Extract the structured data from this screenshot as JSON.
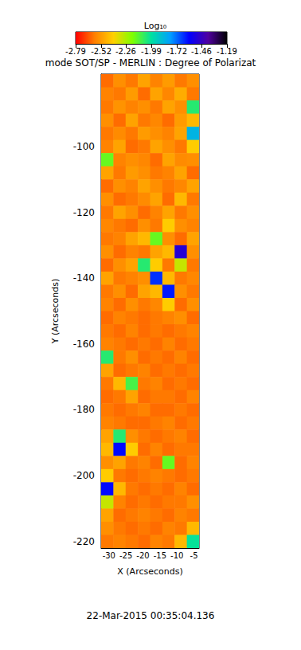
{
  "chart_data": {
    "type": "heatmap",
    "title": "mode SOT/SP - MERLIN : Degree of Polarizat",
    "x_label": "X (Arcseconds)",
    "y_label": "Y (Arcseconds)",
    "annotations": [
      "22-Mar-2015 00:35:04.136"
    ],
    "xlim": [
      -32.3,
      -3.5
    ],
    "ylim": [
      -222,
      -78
    ],
    "xticks": [
      -30,
      -25,
      -20,
      -15,
      -10,
      -5
    ],
    "yticks": [
      -220,
      -200,
      -180,
      -160,
      -140,
      -120,
      -100
    ],
    "colorbar": {
      "label": "Log₁₀",
      "range": [
        -2.79,
        -1.19
      ],
      "ticks": [
        -2.79,
        -2.52,
        -2.26,
        -1.99,
        -1.72,
        -1.46,
        -1.19
      ]
    },
    "x": [
      -30.5,
      -26.9,
      -23.3,
      -19.7,
      -16.1,
      -12.5,
      -8.9,
      -5.3
    ],
    "y": [
      -80,
      -84,
      -88,
      -92,
      -96,
      -100,
      -104,
      -108,
      -112,
      -116,
      -120,
      -124,
      -128,
      -132,
      -136,
      -140,
      -144,
      -148,
      -152,
      -156,
      -160,
      -164,
      -168,
      -172,
      -176,
      -180,
      -184,
      -188,
      -192,
      -196,
      -200,
      -204,
      -208,
      -212,
      -216,
      -220
    ],
    "values": [
      [
        -2.62,
        -2.55,
        -2.6,
        -2.5,
        -2.58,
        -2.52,
        -2.6,
        -2.55
      ],
      [
        -2.58,
        -2.6,
        -2.52,
        -2.62,
        -2.5,
        -2.57,
        -2.48,
        -2.6
      ],
      [
        -2.6,
        -2.54,
        -2.58,
        -2.55,
        -2.6,
        -2.5,
        -2.55,
        -2.05
      ],
      [
        -2.55,
        -2.62,
        -2.5,
        -2.6,
        -2.57,
        -2.62,
        -2.52,
        -2.45
      ],
      [
        -2.6,
        -2.56,
        -2.6,
        -2.52,
        -2.55,
        -2.58,
        -2.5,
        -1.85
      ],
      [
        -2.58,
        -2.5,
        -2.62,
        -2.6,
        -2.5,
        -2.55,
        -2.6,
        -2.4
      ],
      [
        -2.15,
        -2.58,
        -2.55,
        -2.57,
        -2.62,
        -2.5,
        -2.56,
        -2.55
      ],
      [
        -2.5,
        -2.6,
        -2.52,
        -2.55,
        -2.6,
        -2.58,
        -2.5,
        -2.62
      ],
      [
        -2.62,
        -2.55,
        -2.58,
        -2.5,
        -2.55,
        -2.6,
        -2.57,
        -2.5
      ],
      [
        -2.55,
        -2.62,
        -2.6,
        -2.56,
        -2.5,
        -2.62,
        -2.45,
        -2.6
      ],
      [
        -2.6,
        -2.5,
        -2.55,
        -2.62,
        -2.58,
        -2.5,
        -2.6,
        -2.55
      ],
      [
        -2.57,
        -2.6,
        -2.62,
        -2.55,
        -2.6,
        -2.4,
        -2.55,
        -2.58
      ],
      [
        -2.6,
        -2.58,
        -2.5,
        -2.45,
        -2.15,
        -2.55,
        -2.62,
        -2.5
      ],
      [
        -2.55,
        -2.62,
        -2.58,
        -2.6,
        -2.5,
        -2.45,
        -1.5,
        -2.55
      ],
      [
        -2.62,
        -2.55,
        -2.5,
        -2.05,
        -2.4,
        -2.6,
        -2.3,
        -2.6
      ],
      [
        -2.5,
        -2.6,
        -2.58,
        -2.55,
        -1.65,
        -2.45,
        -2.6,
        -2.57
      ],
      [
        -2.6,
        -2.55,
        -2.62,
        -2.5,
        -2.45,
        -1.62,
        -2.55,
        -2.6
      ],
      [
        -2.58,
        -2.62,
        -2.55,
        -2.6,
        -2.57,
        -2.4,
        -2.62,
        -2.55
      ],
      [
        -2.62,
        -2.58,
        -2.6,
        -2.62,
        -2.6,
        -2.58,
        -2.55,
        -2.62
      ],
      [
        -2.6,
        -2.62,
        -2.58,
        -2.62,
        -2.6,
        -2.62,
        -2.6,
        -2.58
      ],
      [
        -2.58,
        -2.6,
        -2.62,
        -2.6,
        -2.62,
        -2.58,
        -2.62,
        -2.6
      ],
      [
        -2.05,
        -2.6,
        -2.55,
        -2.62,
        -2.6,
        -2.62,
        -2.58,
        -2.62
      ],
      [
        -2.5,
        -2.62,
        -2.6,
        -2.58,
        -2.62,
        -2.6,
        -2.62,
        -2.6
      ],
      [
        -2.6,
        -2.45,
        -2.1,
        -2.6,
        -2.58,
        -2.62,
        -2.6,
        -2.62
      ],
      [
        -2.62,
        -2.6,
        -2.5,
        -2.62,
        -2.6,
        -2.6,
        -2.62,
        -2.58
      ],
      [
        -2.6,
        -2.62,
        -2.6,
        -2.58,
        -2.62,
        -2.62,
        -2.6,
        -2.62
      ],
      [
        -2.58,
        -2.6,
        -2.62,
        -2.62,
        -2.6,
        -2.58,
        -2.62,
        -2.6
      ],
      [
        -2.5,
        -2.05,
        -2.55,
        -2.6,
        -2.62,
        -2.6,
        -2.58,
        -2.62
      ],
      [
        -2.45,
        -1.6,
        -2.4,
        -2.62,
        -2.58,
        -2.62,
        -2.6,
        -2.6
      ],
      [
        -2.55,
        -2.5,
        -2.6,
        -2.58,
        -2.62,
        -2.15,
        -2.62,
        -2.58
      ],
      [
        -2.4,
        -2.6,
        -2.62,
        -2.6,
        -2.58,
        -2.6,
        -2.62,
        -2.6
      ],
      [
        -1.6,
        -2.45,
        -2.6,
        -2.62,
        -2.6,
        -2.62,
        -2.58,
        -2.62
      ],
      [
        -2.3,
        -2.58,
        -2.62,
        -2.6,
        -2.62,
        -2.6,
        -2.6,
        -2.55
      ],
      [
        -2.5,
        -2.62,
        -2.6,
        -2.58,
        -2.6,
        -2.62,
        -2.58,
        -2.6
      ],
      [
        -2.55,
        -2.6,
        -2.62,
        -2.6,
        -2.62,
        -2.58,
        -2.6,
        -2.45
      ],
      [
        -2.6,
        -2.58,
        -2.6,
        -2.62,
        -2.58,
        -2.6,
        -2.45,
        -2.0
      ]
    ]
  }
}
